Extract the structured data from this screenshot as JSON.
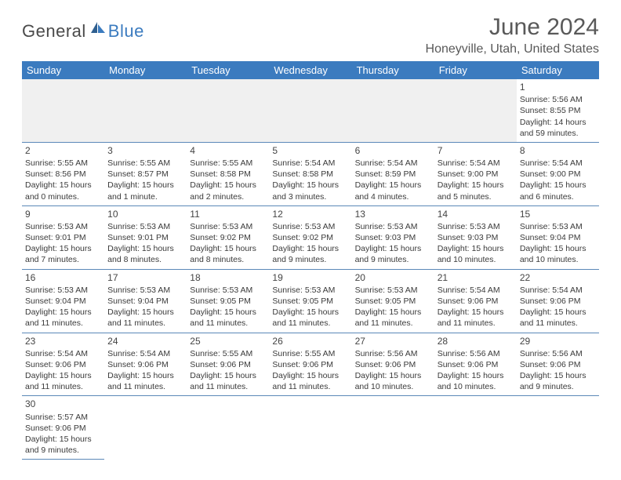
{
  "logo": {
    "general": "General",
    "blue": "Blue"
  },
  "header": {
    "title": "June 2024",
    "location": "Honeyville, Utah, United States"
  },
  "daysOfWeek": [
    "Sunday",
    "Monday",
    "Tuesday",
    "Wednesday",
    "Thursday",
    "Friday",
    "Saturday"
  ],
  "startDayIndex": 6,
  "daysInMonth": 30,
  "days": {
    "1": {
      "sunrise": "5:56 AM",
      "sunset": "8:55 PM",
      "daylight": "14 hours and 59 minutes."
    },
    "2": {
      "sunrise": "5:55 AM",
      "sunset": "8:56 PM",
      "daylight": "15 hours and 0 minutes."
    },
    "3": {
      "sunrise": "5:55 AM",
      "sunset": "8:57 PM",
      "daylight": "15 hours and 1 minute."
    },
    "4": {
      "sunrise": "5:55 AM",
      "sunset": "8:58 PM",
      "daylight": "15 hours and 2 minutes."
    },
    "5": {
      "sunrise": "5:54 AM",
      "sunset": "8:58 PM",
      "daylight": "15 hours and 3 minutes."
    },
    "6": {
      "sunrise": "5:54 AM",
      "sunset": "8:59 PM",
      "daylight": "15 hours and 4 minutes."
    },
    "7": {
      "sunrise": "5:54 AM",
      "sunset": "9:00 PM",
      "daylight": "15 hours and 5 minutes."
    },
    "8": {
      "sunrise": "5:54 AM",
      "sunset": "9:00 PM",
      "daylight": "15 hours and 6 minutes."
    },
    "9": {
      "sunrise": "5:53 AM",
      "sunset": "9:01 PM",
      "daylight": "15 hours and 7 minutes."
    },
    "10": {
      "sunrise": "5:53 AM",
      "sunset": "9:01 PM",
      "daylight": "15 hours and 8 minutes."
    },
    "11": {
      "sunrise": "5:53 AM",
      "sunset": "9:02 PM",
      "daylight": "15 hours and 8 minutes."
    },
    "12": {
      "sunrise": "5:53 AM",
      "sunset": "9:02 PM",
      "daylight": "15 hours and 9 minutes."
    },
    "13": {
      "sunrise": "5:53 AM",
      "sunset": "9:03 PM",
      "daylight": "15 hours and 9 minutes."
    },
    "14": {
      "sunrise": "5:53 AM",
      "sunset": "9:03 PM",
      "daylight": "15 hours and 10 minutes."
    },
    "15": {
      "sunrise": "5:53 AM",
      "sunset": "9:04 PM",
      "daylight": "15 hours and 10 minutes."
    },
    "16": {
      "sunrise": "5:53 AM",
      "sunset": "9:04 PM",
      "daylight": "15 hours and 11 minutes."
    },
    "17": {
      "sunrise": "5:53 AM",
      "sunset": "9:04 PM",
      "daylight": "15 hours and 11 minutes."
    },
    "18": {
      "sunrise": "5:53 AM",
      "sunset": "9:05 PM",
      "daylight": "15 hours and 11 minutes."
    },
    "19": {
      "sunrise": "5:53 AM",
      "sunset": "9:05 PM",
      "daylight": "15 hours and 11 minutes."
    },
    "20": {
      "sunrise": "5:53 AM",
      "sunset": "9:05 PM",
      "daylight": "15 hours and 11 minutes."
    },
    "21": {
      "sunrise": "5:54 AM",
      "sunset": "9:06 PM",
      "daylight": "15 hours and 11 minutes."
    },
    "22": {
      "sunrise": "5:54 AM",
      "sunset": "9:06 PM",
      "daylight": "15 hours and 11 minutes."
    },
    "23": {
      "sunrise": "5:54 AM",
      "sunset": "9:06 PM",
      "daylight": "15 hours and 11 minutes."
    },
    "24": {
      "sunrise": "5:54 AM",
      "sunset": "9:06 PM",
      "daylight": "15 hours and 11 minutes."
    },
    "25": {
      "sunrise": "5:55 AM",
      "sunset": "9:06 PM",
      "daylight": "15 hours and 11 minutes."
    },
    "26": {
      "sunrise": "5:55 AM",
      "sunset": "9:06 PM",
      "daylight": "15 hours and 11 minutes."
    },
    "27": {
      "sunrise": "5:56 AM",
      "sunset": "9:06 PM",
      "daylight": "15 hours and 10 minutes."
    },
    "28": {
      "sunrise": "5:56 AM",
      "sunset": "9:06 PM",
      "daylight": "15 hours and 10 minutes."
    },
    "29": {
      "sunrise": "5:56 AM",
      "sunset": "9:06 PM",
      "daylight": "15 hours and 9 minutes."
    },
    "30": {
      "sunrise": "5:57 AM",
      "sunset": "9:06 PM",
      "daylight": "15 hours and 9 minutes."
    }
  },
  "labels": {
    "sunrisePrefix": "Sunrise: ",
    "sunsetPrefix": "Sunset: ",
    "daylightPrefix": "Daylight: "
  },
  "colors": {
    "headerBg": "#3b7bbf",
    "headerText": "#ffffff",
    "cellBorder": "#5b88b8",
    "emptyBg": "#f0f0f0",
    "textColor": "#3a3a3a",
    "logoBlue": "#3b7bbf"
  }
}
